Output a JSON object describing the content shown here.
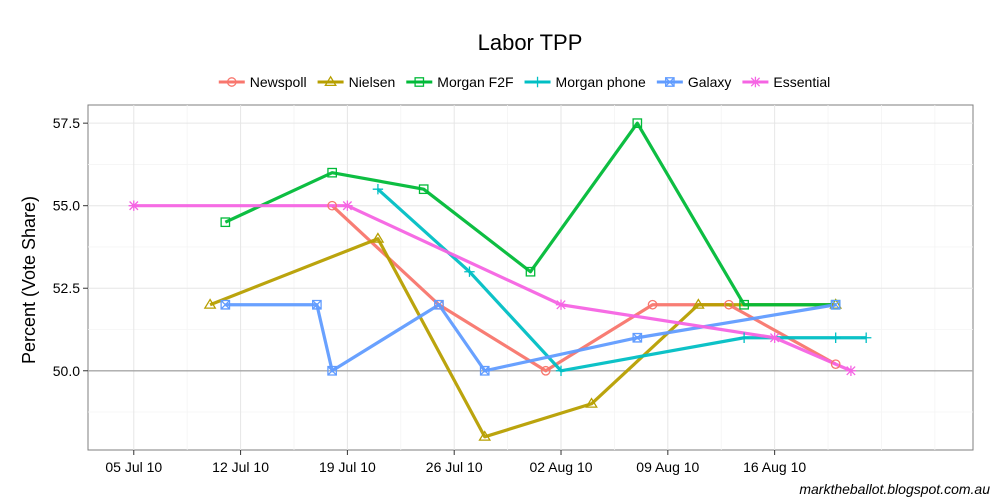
{
  "chart_data": {
    "type": "line",
    "title": "Labor TPP",
    "ylabel": "Percent (Vote Share)",
    "xlabel": "",
    "caption": "marktheballot.blogspot.com.au",
    "ylim": [
      47.6,
      58.05
    ],
    "xlim": [
      "2010-07-02",
      "2010-08-29"
    ],
    "x_ticks": [
      {
        "date": "2010-07-05",
        "label": "05 Jul 10"
      },
      {
        "date": "2010-07-12",
        "label": "12 Jul 10"
      },
      {
        "date": "2010-07-19",
        "label": "19 Jul 10"
      },
      {
        "date": "2010-07-26",
        "label": "26 Jul 10"
      },
      {
        "date": "2010-08-02",
        "label": "02 Aug 10"
      },
      {
        "date": "2010-08-09",
        "label": "09 Aug 10"
      },
      {
        "date": "2010-08-16",
        "label": "16 Aug 10"
      }
    ],
    "y_ticks": [
      {
        "value": 50.0,
        "label": "50.0"
      },
      {
        "value": 52.5,
        "label": "52.5"
      },
      {
        "value": 55.0,
        "label": "55.0"
      },
      {
        "value": 57.5,
        "label": "57.5"
      }
    ],
    "reference_line": 50.0,
    "grid": true,
    "legend_position": "top",
    "series": [
      {
        "name": "Newspoll",
        "color": "#F8766D",
        "marker": "circle",
        "points": [
          [
            "2010-07-18",
            55.0
          ],
          [
            "2010-07-25",
            52.0
          ],
          [
            "2010-08-01",
            50.0
          ],
          [
            "2010-08-08",
            52.0
          ],
          [
            "2010-08-13",
            52.0
          ],
          [
            "2010-08-20",
            50.2
          ]
        ]
      },
      {
        "name": "Nielsen",
        "color": "#B79F00",
        "marker": "triangle",
        "points": [
          [
            "2010-07-10",
            52.0
          ],
          [
            "2010-07-21",
            54.0
          ],
          [
            "2010-07-28",
            48.0
          ],
          [
            "2010-08-04",
            49.0
          ],
          [
            "2010-08-11",
            52.0
          ],
          [
            "2010-08-20",
            52.0
          ]
        ]
      },
      {
        "name": "Morgan F2F",
        "color": "#00BA38",
        "marker": "square",
        "points": [
          [
            "2010-07-11",
            54.5
          ],
          [
            "2010-07-18",
            56.0
          ],
          [
            "2010-07-24",
            55.5
          ],
          [
            "2010-07-31",
            53.0
          ],
          [
            "2010-08-07",
            57.5
          ],
          [
            "2010-08-14",
            52.0
          ],
          [
            "2010-08-20",
            52.0
          ]
        ]
      },
      {
        "name": "Morgan phone",
        "color": "#00BFC4",
        "marker": "plus",
        "points": [
          [
            "2010-07-21",
            55.5
          ],
          [
            "2010-07-27",
            53.0
          ],
          [
            "2010-08-02",
            50.0
          ],
          [
            "2010-08-14",
            51.0
          ],
          [
            "2010-08-20",
            51.0
          ],
          [
            "2010-08-22",
            51.0
          ]
        ]
      },
      {
        "name": "Galaxy",
        "color": "#619CFF",
        "marker": "boxx",
        "points": [
          [
            "2010-07-11",
            52.0
          ],
          [
            "2010-07-17",
            52.0
          ],
          [
            "2010-07-18",
            50.0
          ],
          [
            "2010-07-25",
            52.0
          ],
          [
            "2010-07-28",
            50.0
          ],
          [
            "2010-08-07",
            51.0
          ],
          [
            "2010-08-20",
            52.0
          ]
        ]
      },
      {
        "name": "Essential",
        "color": "#F564E3",
        "marker": "asterisk",
        "points": [
          [
            "2010-07-05",
            55.0
          ],
          [
            "2010-07-19",
            55.0
          ],
          [
            "2010-08-02",
            52.0
          ],
          [
            "2010-08-16",
            51.0
          ],
          [
            "2010-08-21",
            50.0
          ]
        ]
      }
    ]
  }
}
